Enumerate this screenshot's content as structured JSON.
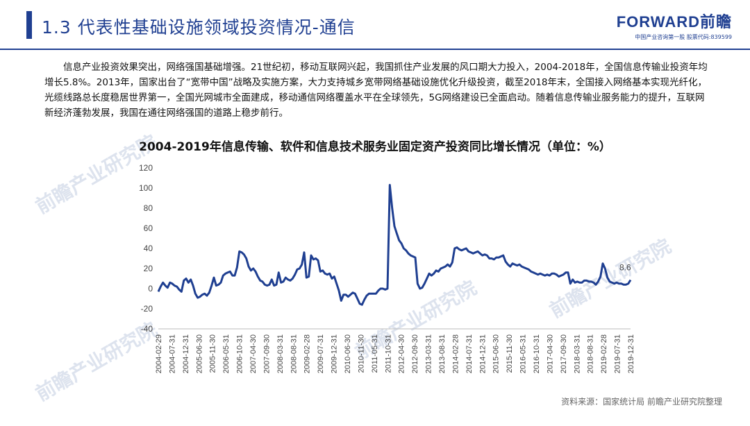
{
  "header": {
    "section_title": "1.3 代表性基础设施领域投资情况-通信",
    "brand_name": "FORWARD前瞻",
    "brand_tagline": "中国产业咨询第一股  股票代码:839599",
    "accent_color": "#1f3f91"
  },
  "intro_text": "信息产业投资效果突出，网络强国基础增强。21世纪初，移动互联网兴起，我国抓住产业发展的风口期大力投入，2004-2018年，全国信息传输业投资年均增长5.8%。2013年，国家出台了“宽带中国”战略及实施方案，大力支持城乡宽带网络基础设施优化升级投资，截至2018年末，全国接入网络基本实现光纤化，光缆线路总长度稳居世界第一，全国光网城市全面建成，移动通信网络覆盖水平在全球领先，5G网络建设已全面启动。随着信息传输业服务能力的提升，互联网新经济蓬勃发展，我国在通往网络强国的道路上稳步前行。",
  "watermark_text": "前瞻产业研究院",
  "source": "资料来源：国家统计局 前瞻产业研究院整理",
  "chart_data": {
    "type": "line",
    "title": "2004-2019年信息传输、软件和信息技术服务业固定资产投资同比增长情况（单位：%）",
    "xlabel": "",
    "ylabel": "",
    "ylim": [
      -40,
      120
    ],
    "yticks": [
      "120",
      "100",
      "80",
      "60",
      "40",
      "20",
      "0",
      "-20",
      "-40"
    ],
    "grid": false,
    "line_color": "#1f3f91",
    "xtick_labels": [
      "2004-02-29",
      "2004-07-31",
      "2004-12-31",
      "2005-06-30",
      "2005-11-30",
      "2006-05-31",
      "2006-10-31",
      "2007-04-30",
      "2007-09-30",
      "2008-03-31",
      "2008-08-31",
      "2009-02-28",
      "2009-07-31",
      "2009-12-31",
      "2010-06-30",
      "2010-11-30",
      "2011-05-31",
      "2011-10-31",
      "2012-04-30",
      "2012-09-30",
      "2013-03-31",
      "2013-08-31",
      "2014-02-28",
      "2014-07-31",
      "2014-12-31",
      "2015-06-30",
      "2015-11-30",
      "2016-05-31",
      "2016-10-31",
      "2017-04-30",
      "2017-09-30",
      "2018-03-31",
      "2018-08-31",
      "2019-02-28",
      "2019-07-31",
      "2019-12-31"
    ],
    "series": [
      {
        "values": [
          -3,
          2,
          6,
          3,
          1,
          6,
          5,
          3,
          2,
          -1,
          -3,
          8,
          10,
          6,
          9,
          3,
          -5,
          -9,
          -8,
          -6,
          -5,
          -7,
          -4,
          3,
          11,
          3,
          4,
          6,
          13,
          15,
          16,
          17,
          13,
          13,
          21,
          37,
          36,
          34,
          30,
          22,
          18,
          20,
          17,
          12,
          8,
          7,
          4,
          3,
          4,
          9,
          3,
          4,
          16,
          6,
          7,
          11,
          9,
          8,
          10,
          14,
          19,
          20,
          24,
          36,
          11,
          12,
          33,
          29,
          30,
          28,
          17,
          18,
          15,
          14,
          15,
          10,
          12,
          5,
          -2,
          -12,
          -6,
          -6,
          -8,
          -6,
          -4,
          -5,
          -10,
          -15,
          -16,
          -11,
          -7,
          -5,
          -5,
          -5,
          -5,
          -2,
          0,
          0,
          -1,
          0,
          103,
          80,
          62,
          55,
          48,
          45,
          40,
          38,
          35,
          33,
          32,
          31,
          5,
          0,
          1,
          5,
          10,
          15,
          13,
          15,
          18,
          17,
          20,
          21,
          22,
          24,
          22,
          26,
          40,
          41,
          39,
          38,
          39,
          40,
          37,
          36,
          35,
          36,
          37,
          35,
          33,
          34,
          33,
          30,
          30,
          29,
          31,
          31,
          32,
          33,
          27,
          24,
          22,
          25,
          24,
          23,
          24,
          22,
          21,
          20,
          19,
          17,
          16,
          15,
          14,
          15,
          14,
          13,
          14,
          13,
          15,
          15,
          14,
          12,
          13,
          14,
          16,
          16,
          5,
          9,
          6,
          7,
          6,
          6,
          8,
          8,
          7,
          7,
          6,
          4,
          7,
          12,
          25,
          20,
          11,
          7,
          6,
          5,
          6,
          5,
          5,
          4,
          4,
          5,
          8.6
        ]
      }
    ],
    "end_label": "8.6"
  }
}
